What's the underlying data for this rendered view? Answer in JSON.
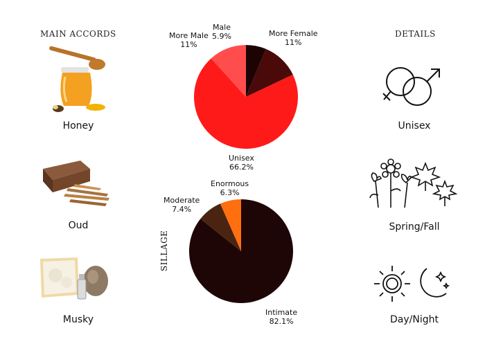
{
  "headings": {
    "accords": "MAIN ACCORDS",
    "details": "DETAILS",
    "sillage": "SILLAGE"
  },
  "accords": [
    {
      "label": "Honey",
      "icon": "honey-jar-icon"
    },
    {
      "label": "Oud",
      "icon": "oud-wood-icon"
    },
    {
      "label": "Musky",
      "icon": "musk-icon"
    }
  ],
  "details": [
    {
      "label": "Unisex",
      "icon": "gender-symbols-icon"
    },
    {
      "label": "Spring/Fall",
      "icon": "flowers-leaves-icon"
    },
    {
      "label": "Day/Night",
      "icon": "sun-moon-icon"
    }
  ],
  "chart_data": [
    {
      "type": "pie",
      "categories": [
        "Male",
        "More Female",
        "Unisex",
        "More Male"
      ],
      "values": [
        5.9,
        11,
        66.2,
        11
      ],
      "labels": [
        "Male\n5.9%",
        "More Female\n11%",
        "Unisex\n66.2%",
        "More Male\n11%"
      ],
      "colors": [
        "#1e0303",
        "#4a0a0a",
        "#ff1a1a",
        "#ff4d4d"
      ],
      "start_angle_deg": 0
    },
    {
      "type": "pie",
      "categories": [
        "Intimate",
        "Moderate",
        "Enormous"
      ],
      "values": [
        82.1,
        7.4,
        6.3
      ],
      "labels": [
        "Intimate\n82.1%",
        "Moderate\n7.4%",
        "Enormous\n6.3%"
      ],
      "colors": [
        "#1e0606",
        "#4a2410",
        "#ff6e0f"
      ],
      "start_angle_deg": 0
    }
  ]
}
